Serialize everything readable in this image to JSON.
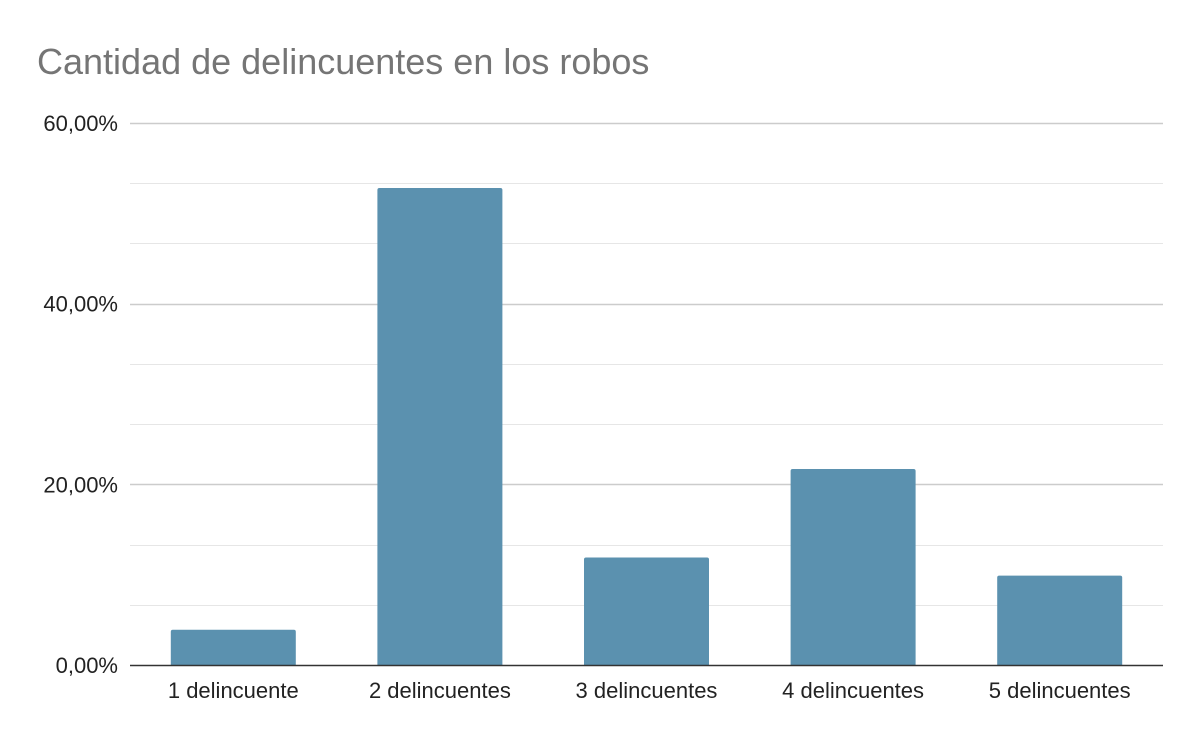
{
  "chart_data": {
    "type": "bar",
    "title": "Cantidad de delincuentes en los robos",
    "xlabel": "",
    "ylabel": "",
    "categories": [
      "1 delincuente",
      "2 delincuentes",
      "3 delincuentes",
      "4 delincuentes",
      "5 delincuentes"
    ],
    "values": [
      3.9,
      52.8,
      11.9,
      21.7,
      9.9
    ],
    "ylim": [
      0,
      60
    ],
    "yticks": [
      0,
      20,
      40,
      60
    ],
    "ytick_labels": [
      "0,00%",
      "20,00%",
      "40,00%",
      "60,00%"
    ],
    "minor_gridlines": [
      6.67,
      13.33,
      26.67,
      33.33,
      46.67,
      53.33
    ],
    "grid": true,
    "legend": "none",
    "colors": {
      "bar": "#5b91af",
      "grid_major": "#cccccc",
      "grid_minor": "#e6e6e6",
      "baseline": "#333333",
      "title": "#757575"
    }
  }
}
